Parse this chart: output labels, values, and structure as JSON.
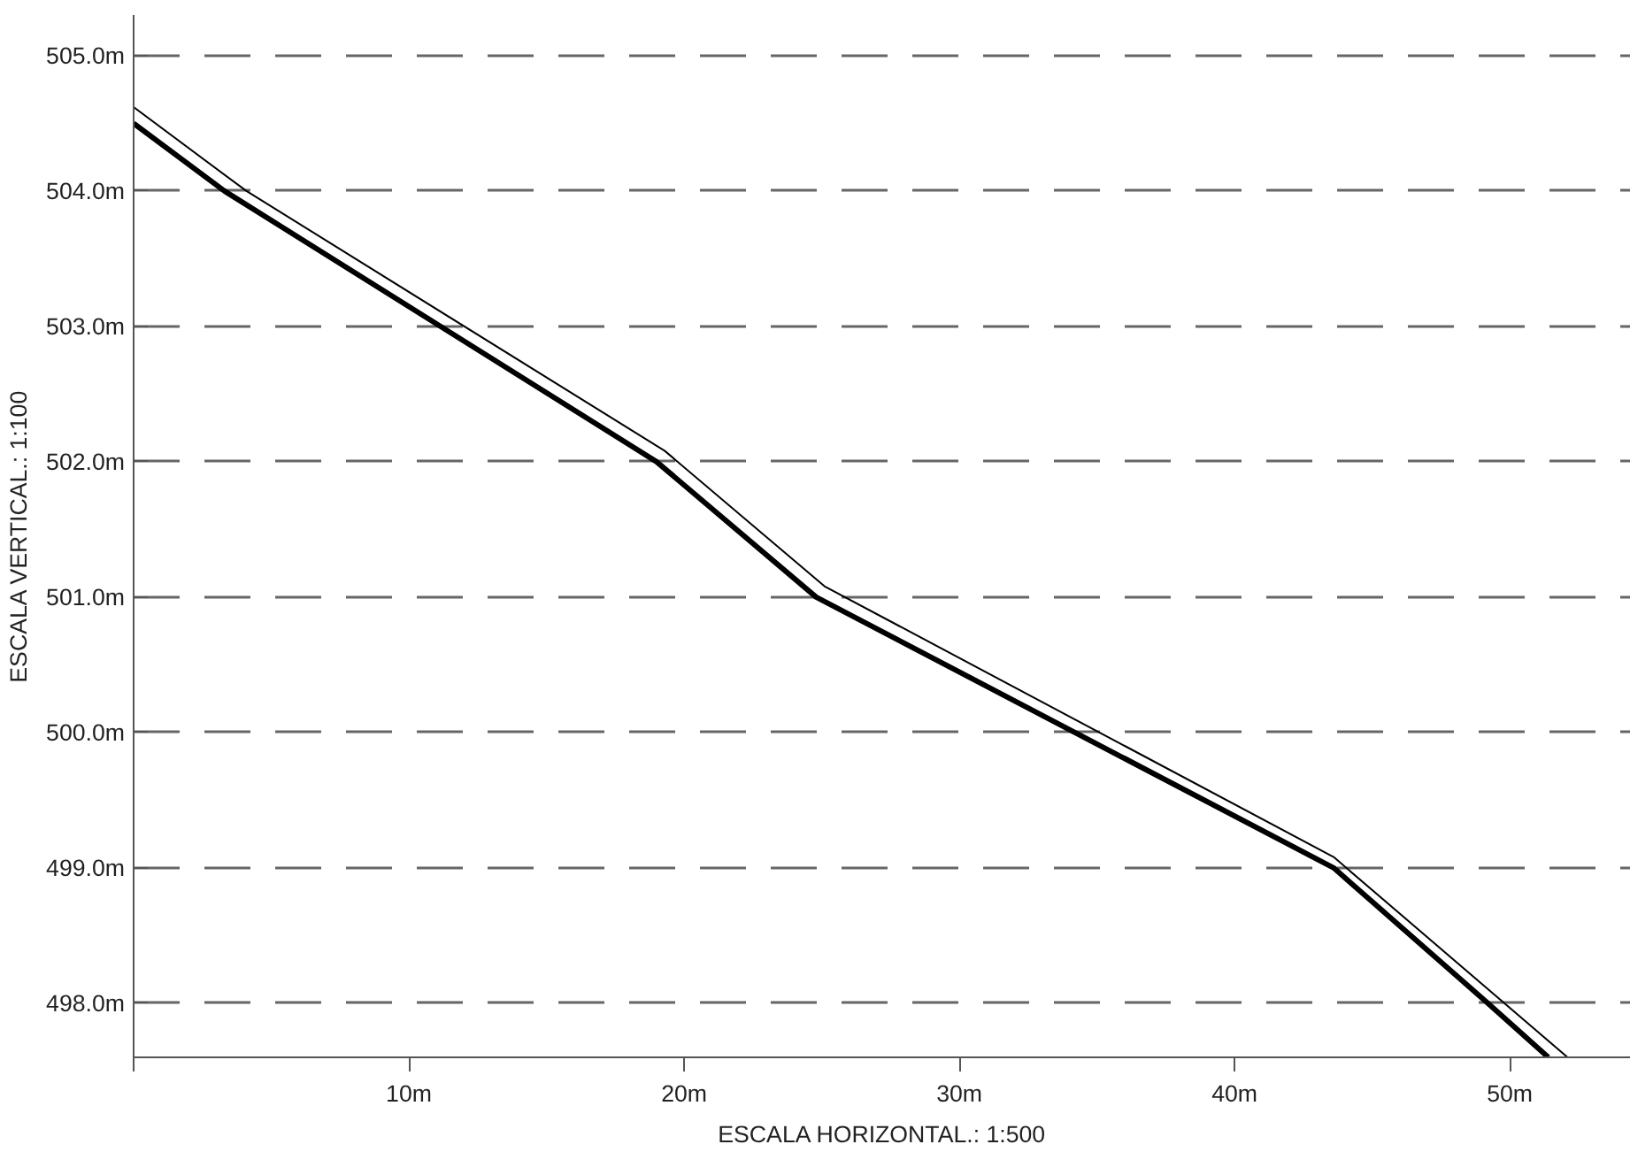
{
  "chart_data": {
    "type": "line",
    "xlabel": "ESCALA HORIZONTAL.: 1:500",
    "ylabel": "ESCALA VERTICAL.: 1:100",
    "series": [
      {
        "color": "#000000",
        "x": [
          0,
          3.3,
          19.0,
          24.8,
          43.6,
          49.2,
          51.4
        ],
        "values": [
          504.5,
          504.0,
          502.0,
          501.0,
          499.0,
          498.0,
          497.6
        ]
      },
      {
        "color": "#000000",
        "x": [
          0,
          4.1,
          19.3,
          25.1,
          43.6,
          52.1
        ],
        "values": [
          504.62,
          504.0,
          502.08,
          501.08,
          499.08,
          497.6
        ]
      }
    ],
    "xlim": [
      0,
      54.4
    ],
    "ylim": [
      497.6,
      505.3
    ],
    "xticks": [
      {
        "value": 0,
        "label": null
      },
      {
        "value": 10,
        "label": "10m"
      },
      {
        "value": 20,
        "label": "20m"
      },
      {
        "value": 30,
        "label": "30m"
      },
      {
        "value": 40,
        "label": "40m"
      },
      {
        "value": 50,
        "label": "50m"
      }
    ],
    "yticks": [
      {
        "value": 498,
        "label": "498.0m"
      },
      {
        "value": 499,
        "label": "499.0m"
      },
      {
        "value": 500,
        "label": "500.0m"
      },
      {
        "value": 501,
        "label": "501.0m"
      },
      {
        "value": 502,
        "label": "502.0m"
      },
      {
        "value": 503,
        "label": "503.0m"
      },
      {
        "value": 504,
        "label": "504.0m"
      },
      {
        "value": 505,
        "label": "505.0m"
      }
    ],
    "grid": "y"
  }
}
